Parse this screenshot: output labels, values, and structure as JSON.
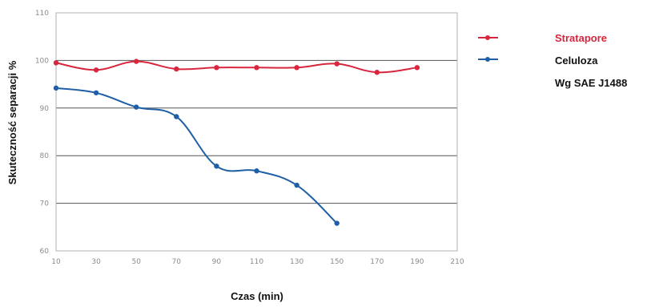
{
  "chart_data": {
    "type": "line",
    "title": "",
    "xlabel": "Czas (min)",
    "ylabel": "Skuteczność separacji %",
    "ylim": [
      60,
      110
    ],
    "yticks": [
      "60",
      "70",
      "80",
      "90",
      "100",
      "110"
    ],
    "x_categories": [
      "10",
      "30",
      "50",
      "70",
      "90",
      "110",
      "130",
      "150",
      "170",
      "190",
      "210"
    ],
    "grid": true,
    "legend_position": "right",
    "series": [
      {
        "name": "Stratapore",
        "color": "#d7263d",
        "x": [
          "10",
          "30",
          "50",
          "70",
          "90",
          "110",
          "130",
          "150",
          "170",
          "190"
        ],
        "values": [
          99.5,
          98.0,
          99.8,
          98.2,
          98.5,
          98.5,
          98.5,
          99.3,
          97.5,
          98.5
        ]
      },
      {
        "name": "Celuloza",
        "color": "#1f5fa6",
        "x": [
          "10",
          "30",
          "50",
          "70",
          "90",
          "110",
          "130",
          "150"
        ],
        "values": [
          94.2,
          93.2,
          90.2,
          88.2,
          77.8,
          76.8,
          73.8,
          65.8
        ]
      }
    ],
    "legend_extra": "Wg SAE J1488"
  }
}
